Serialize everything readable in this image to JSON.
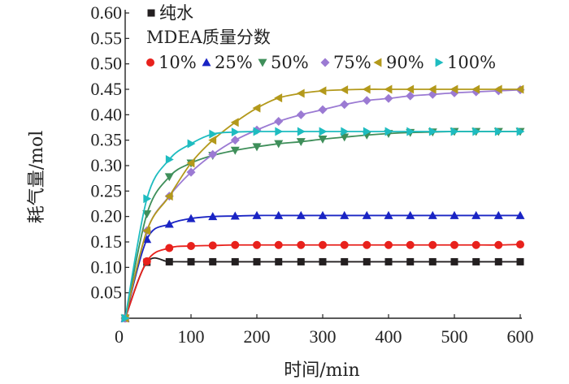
{
  "chart_data": {
    "type": "line",
    "xlabel": "时间/min",
    "ylabel": "耗气量/mol",
    "xlim": [
      0,
      600
    ],
    "ylim": [
      0,
      0.6
    ],
    "xticks": [
      "0",
      "100",
      "200",
      "300",
      "400",
      "500",
      "600"
    ],
    "yticks": [
      "0.05",
      "0.10",
      "0.15",
      "0.20",
      "0.25",
      "0.30",
      "0.35",
      "0.40",
      "0.45",
      "0.50",
      "0.55",
      "0.60"
    ],
    "grid": false,
    "legend": {
      "placement": "top-left",
      "group_title": "MDEA质量分数"
    },
    "x": [
      0,
      33,
      67,
      100,
      133,
      167,
      200,
      233,
      267,
      300,
      333,
      367,
      400,
      433,
      467,
      500,
      533,
      567,
      600
    ],
    "series": [
      {
        "name": "纯水",
        "marker": "square",
        "color": "#231f20",
        "values": [
          0,
          0.11,
          0.111,
          0.111,
          0.111,
          0.111,
          0.111,
          0.111,
          0.111,
          0.111,
          0.111,
          0.111,
          0.111,
          0.111,
          0.111,
          0.111,
          0.111,
          0.111,
          0.111
        ]
      },
      {
        "name": "10%",
        "marker": "circle",
        "color": "#e8211c",
        "values": [
          0,
          0.112,
          0.138,
          0.142,
          0.143,
          0.144,
          0.144,
          0.144,
          0.144,
          0.144,
          0.144,
          0.144,
          0.144,
          0.144,
          0.144,
          0.144,
          0.144,
          0.144,
          0.145
        ]
      },
      {
        "name": "25%",
        "marker": "triangle-up",
        "color": "#1a24c4",
        "values": [
          0,
          0.155,
          0.185,
          0.196,
          0.2,
          0.201,
          0.202,
          0.202,
          0.202,
          0.202,
          0.202,
          0.202,
          0.202,
          0.202,
          0.202,
          0.202,
          0.202,
          0.202,
          0.202
        ]
      },
      {
        "name": "50%",
        "marker": "triangle-down",
        "color": "#3f8f5a",
        "values": [
          0,
          0.205,
          0.278,
          0.305,
          0.32,
          0.33,
          0.337,
          0.343,
          0.347,
          0.352,
          0.356,
          0.36,
          0.363,
          0.365,
          0.366,
          0.367,
          0.367,
          0.367,
          0.367
        ]
      },
      {
        "name": "75%",
        "marker": "diamond",
        "color": "#9b7ad3",
        "values": [
          0,
          0.172,
          0.24,
          0.287,
          0.322,
          0.35,
          0.37,
          0.387,
          0.4,
          0.41,
          0.42,
          0.428,
          0.432,
          0.437,
          0.44,
          0.443,
          0.445,
          0.447,
          0.449
        ]
      },
      {
        "name": "90%",
        "marker": "triangle-left",
        "color": "#b3991b",
        "values": [
          0,
          0.172,
          0.24,
          0.305,
          0.35,
          0.385,
          0.413,
          0.433,
          0.442,
          0.447,
          0.449,
          0.45,
          0.45,
          0.45,
          0.45,
          0.45,
          0.45,
          0.45,
          0.45
        ]
      },
      {
        "name": "100%",
        "marker": "triangle-right",
        "color": "#1ebcc0",
        "values": [
          0,
          0.235,
          0.312,
          0.343,
          0.362,
          0.366,
          0.367,
          0.367,
          0.367,
          0.367,
          0.367,
          0.367,
          0.367,
          0.367,
          0.367,
          0.367,
          0.367,
          0.367,
          0.367
        ]
      }
    ]
  }
}
